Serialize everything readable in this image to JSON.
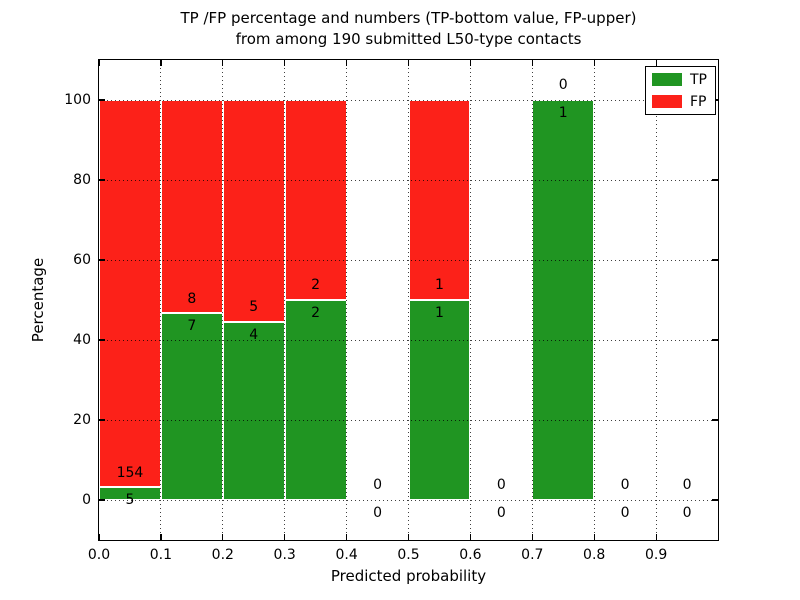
{
  "chart_data": {
    "type": "bar",
    "stacked": true,
    "title": "TP /FP percentage and numbers (TP-bottom value, FP-upper)\nfrom among 190 submitted L50-type contacts",
    "title_line1": "TP /FP percentage and numbers (TP-bottom value, FP-upper)",
    "title_line2": "from among 190 submitted L50-type contacts",
    "xlabel": "Predicted probability",
    "ylabel": "Percentage",
    "xlim": [
      0.0,
      1.0
    ],
    "ylim": [
      -10,
      110
    ],
    "grid": "dotted",
    "legend_position": "upper right",
    "bin_edges": [
      0.0,
      0.1,
      0.2,
      0.3,
      0.4,
      0.5,
      0.6,
      0.7,
      0.8,
      0.9,
      1.0
    ],
    "xticks": {
      "values": [
        0.0,
        0.1,
        0.2,
        0.3,
        0.4,
        0.5,
        0.6,
        0.7,
        0.8,
        0.9
      ],
      "labels": [
        "0.0",
        "0.1",
        "0.2",
        "0.3",
        "0.4",
        "0.5",
        "0.6",
        "0.7",
        "0.8",
        "0.9"
      ]
    },
    "yticks": [
      0,
      20,
      40,
      60,
      80,
      100
    ],
    "series": [
      {
        "name": "TP",
        "color": "#209522",
        "counts": [
          5,
          7,
          4,
          2,
          0,
          1,
          0,
          1,
          0,
          0
        ]
      },
      {
        "name": "FP",
        "color": "#fc2119",
        "counts": [
          154,
          8,
          5,
          2,
          0,
          1,
          0,
          0,
          0,
          0
        ]
      }
    ],
    "tp_share_percent": [
      3.1,
      46.7,
      44.4,
      50.0,
      null,
      50.0,
      null,
      100.0,
      null,
      null
    ],
    "total_contacts": 190,
    "label_convention": "TP count shown below the TP/FP boundary, FP count shown above it"
  }
}
